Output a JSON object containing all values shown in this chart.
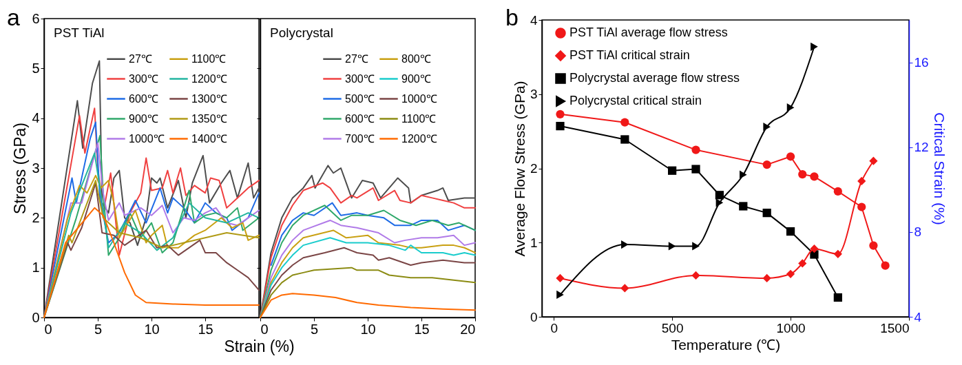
{
  "chart_data": [
    {
      "type": "line",
      "title": "PST TiAl",
      "xlabel": "Strain (%)",
      "ylabel": "Stress (GPa)",
      "annotations": [
        "a"
      ],
      "xlim": [
        0,
        20
      ],
      "xticks": [
        0,
        5,
        10,
        15
      ],
      "ylim": [
        0,
        6
      ],
      "yticks": [
        0,
        1,
        2,
        3,
        4,
        5,
        6
      ],
      "legend": "top right",
      "series": [
        {
          "name": "27℃",
          "color": "#4d4d4d",
          "x": [
            0,
            3.1,
            3.6,
            4.5,
            5.15,
            5.4,
            6,
            6.5,
            7,
            7.5,
            8,
            8.7,
            9.5,
            10,
            10.5,
            10.8,
            11.5,
            12.5,
            13.2,
            13.8,
            14.8,
            15.4,
            16.5,
            17.3,
            18,
            19,
            19.5,
            20
          ],
          "values": [
            0,
            4.35,
            3.4,
            4.7,
            5.15,
            2.3,
            2.1,
            2.8,
            2.95,
            2.0,
            1.9,
            1.45,
            2.0,
            2.8,
            2.7,
            2.8,
            2.2,
            2.75,
            2.0,
            2.7,
            3.25,
            2.3,
            2.7,
            2.95,
            2.4,
            3.1,
            2.4,
            2.6
          ]
        },
        {
          "name": "300℃",
          "color": "#f04040",
          "x": [
            0,
            3.3,
            3.8,
            4.7,
            5,
            5.5,
            6.2,
            7,
            8,
            9,
            9.5,
            10,
            11,
            11.5,
            12,
            12.7,
            13.2,
            14,
            15,
            15.5,
            16.3,
            17,
            18,
            19,
            20
          ],
          "values": [
            0,
            4.05,
            3.3,
            4.2,
            3.0,
            2.1,
            2.9,
            1.25,
            2.1,
            2.5,
            3.2,
            2.55,
            2.6,
            2.95,
            2.5,
            3.0,
            2.45,
            2.65,
            2.5,
            2.8,
            2.75,
            2.2,
            2.4,
            2.6,
            2.75
          ]
        },
        {
          "name": "600℃",
          "color": "#1e6be6",
          "x": [
            0,
            2.6,
            3,
            4.3,
            4.8,
            5.2,
            6,
            7,
            8.5,
            9.5,
            10.8,
            11.5,
            12,
            13,
            14,
            15,
            16,
            17,
            17.5,
            19,
            20
          ],
          "values": [
            0,
            2.8,
            2.3,
            3.6,
            3.92,
            2.4,
            1.5,
            1.7,
            2.35,
            1.9,
            2.6,
            2.1,
            2.4,
            2.2,
            1.9,
            2.3,
            2.1,
            2.0,
            1.75,
            2.0,
            2.5
          ]
        },
        {
          "name": "900℃",
          "color": "#2fa86a",
          "x": [
            0,
            3,
            5.2,
            5.5,
            6,
            7,
            8,
            9,
            10,
            11,
            12,
            13,
            13.5,
            14,
            15,
            16,
            17,
            18,
            18.5,
            20
          ],
          "values": [
            0,
            2.0,
            3.65,
            2.5,
            1.25,
            1.6,
            2.1,
            1.6,
            1.9,
            1.3,
            1.5,
            2.2,
            2.55,
            1.9,
            2.05,
            2.1,
            2.0,
            2.2,
            1.75,
            2.0
          ]
        },
        {
          "name": "1000℃",
          "color": "#b07ae8",
          "x": [
            0,
            2.5,
            3.5,
            5,
            5.5,
            6,
            7,
            7.5,
            9,
            10,
            11,
            12,
            13,
            14,
            15,
            16,
            17,
            18,
            19,
            20
          ],
          "values": [
            0,
            2.3,
            2.3,
            3.5,
            2.5,
            1.95,
            2.3,
            2.05,
            2.2,
            2.05,
            2.25,
            1.7,
            2.0,
            1.95,
            2.1,
            2.2,
            1.9,
            1.85,
            2.0,
            2.15
          ]
        },
        {
          "name": "1100℃",
          "color": "#c9a012",
          "x": [
            0,
            2.2,
            3.3,
            4,
            4.8,
            5.3,
            6,
            6.5,
            7,
            8.5,
            9.5,
            10,
            11,
            11.5,
            12.5,
            14,
            15,
            16.5,
            17.5,
            18.5,
            19,
            20
          ],
          "values": [
            0,
            2.0,
            2.65,
            2.5,
            2.85,
            2.6,
            2.75,
            2.3,
            1.6,
            2.15,
            1.5,
            1.65,
            1.85,
            1.4,
            1.4,
            1.65,
            1.75,
            2.0,
            1.8,
            1.9,
            1.55,
            1.65
          ]
        },
        {
          "name": "1200℃",
          "color": "#22b5a0",
          "x": [
            0,
            2.5,
            4.7,
            5.2,
            6,
            7.5,
            9,
            10.5,
            12,
            13.5,
            15,
            17,
            19,
            20
          ],
          "values": [
            0,
            2.1,
            3.3,
            2.6,
            1.4,
            1.9,
            1.7,
            1.35,
            1.6,
            2.3,
            2.0,
            1.9,
            2.1,
            2.0
          ]
        },
        {
          "name": "1300℃",
          "color": "#7a4545",
          "x": [
            0,
            2.2,
            2.5,
            3.5,
            4.8,
            5.4,
            6.5,
            7.5,
            9.5,
            10.5,
            11.5,
            12.5,
            14.5,
            15,
            16,
            17,
            18,
            19,
            20
          ],
          "values": [
            0,
            1.5,
            1.35,
            1.8,
            2.7,
            1.7,
            1.65,
            1.45,
            1.75,
            1.4,
            1.45,
            1.25,
            1.55,
            1.3,
            1.3,
            1.1,
            0.95,
            0.8,
            0.55
          ]
        },
        {
          "name": "1350℃",
          "color": "#b09a15",
          "x": [
            0,
            2.3,
            2.6,
            4.8,
            5.5,
            7,
            9,
            11,
            13,
            15,
            17,
            20
          ],
          "values": [
            0,
            1.65,
            1.5,
            2.75,
            2.0,
            1.7,
            1.6,
            1.4,
            1.5,
            1.6,
            1.7,
            1.6
          ]
        },
        {
          "name": "1400℃",
          "color": "#ff6a00",
          "x": [
            0,
            2,
            4.7,
            5.5,
            6.5,
            7.5,
            8.5,
            9.5,
            12,
            15,
            20
          ],
          "values": [
            0,
            1.5,
            2.2,
            2.05,
            1.5,
            0.9,
            0.45,
            0.3,
            0.27,
            0.25,
            0.25
          ]
        }
      ]
    },
    {
      "type": "line",
      "title": "Polycrystal",
      "xlim": [
        0,
        20
      ],
      "xticks": [
        0,
        5,
        10,
        15,
        20
      ],
      "ylim": [
        0,
        6
      ],
      "yticks": [
        0,
        1,
        2,
        3,
        4,
        5,
        6
      ],
      "tick_labels": "x",
      "legend": "top right",
      "series": [
        {
          "name": "27℃",
          "color": "#4d4d4d",
          "x": [
            0,
            1,
            2,
            3,
            4,
            4.8,
            5.1,
            6.3,
            6.8,
            7.5,
            8,
            8.5,
            9.5,
            10.5,
            11.2,
            12.8,
            13.8,
            14,
            15,
            16.5,
            17,
            17.5,
            19,
            20
          ],
          "values": [
            0,
            1.3,
            2.0,
            2.4,
            2.6,
            2.85,
            2.6,
            3.05,
            2.9,
            3.0,
            2.7,
            2.4,
            2.75,
            2.7,
            2.4,
            2.8,
            2.6,
            2.3,
            2.45,
            2.55,
            2.6,
            2.35,
            2.4,
            2.4
          ]
        },
        {
          "name": "300℃",
          "color": "#f04040",
          "x": [
            0,
            1,
            2,
            3,
            4,
            5.8,
            6.5,
            7.5,
            8.5,
            9,
            10.5,
            11,
            12.5,
            13,
            14,
            15,
            16,
            17,
            18,
            19,
            20
          ],
          "values": [
            0,
            1.2,
            1.85,
            2.25,
            2.55,
            2.7,
            2.6,
            2.3,
            2.45,
            2.4,
            2.6,
            2.35,
            2.55,
            2.35,
            2.3,
            2.45,
            2.4,
            2.35,
            2.3,
            2.2,
            2.2
          ]
        },
        {
          "name": "500℃",
          "color": "#1e6be6",
          "x": [
            1,
            2,
            3,
            4,
            5,
            6.7,
            7.5,
            9,
            10,
            11.5,
            12.5,
            14,
            15,
            16.5,
            17.5,
            19,
            20
          ],
          "values": [
            1.05,
            1.65,
            1.95,
            2.1,
            2.05,
            2.3,
            2.05,
            2.1,
            2.05,
            2.0,
            1.85,
            1.85,
            1.95,
            1.95,
            1.75,
            1.85,
            1.75
          ]
        },
        {
          "name": "600℃",
          "color": "#2fa86a",
          "x": [
            0,
            1,
            2,
            3,
            4,
            6,
            7.5,
            8.5,
            10,
            11.5,
            13,
            14.5,
            16,
            17.5,
            18.5,
            20
          ],
          "values": [
            0,
            0.95,
            1.5,
            1.85,
            2.05,
            2.25,
            1.95,
            2.05,
            2.05,
            2.15,
            1.95,
            1.85,
            1.95,
            1.85,
            1.9,
            1.75
          ]
        },
        {
          "name": "700℃",
          "color": "#b07ae8",
          "x": [
            0,
            1,
            2,
            3,
            4,
            6.5,
            7.5,
            9,
            11,
            12.5,
            13.5,
            15,
            16.5,
            18,
            19,
            20
          ],
          "values": [
            0,
            0.8,
            1.25,
            1.55,
            1.75,
            1.95,
            1.85,
            1.8,
            1.7,
            1.5,
            1.55,
            1.6,
            1.6,
            1.65,
            1.45,
            1.5
          ]
        },
        {
          "name": "800℃",
          "color": "#c9a012",
          "x": [
            0,
            1,
            2,
            3,
            4,
            6.8,
            8,
            10,
            11,
            13,
            14,
            15,
            17,
            18,
            19,
            20
          ],
          "values": [
            0,
            0.7,
            1.1,
            1.4,
            1.6,
            1.75,
            1.6,
            1.65,
            1.5,
            1.45,
            1.4,
            1.4,
            1.45,
            1.45,
            1.4,
            1.3
          ]
        },
        {
          "name": "900℃",
          "color": "#19cccc",
          "x": [
            0,
            1,
            2,
            3,
            4,
            6.5,
            8,
            10,
            12,
            13.5,
            14,
            15,
            17,
            18,
            19,
            20
          ],
          "values": [
            0,
            0.65,
            1.0,
            1.25,
            1.45,
            1.6,
            1.5,
            1.5,
            1.45,
            1.35,
            1.45,
            1.3,
            1.3,
            1.25,
            1.3,
            1.25
          ]
        },
        {
          "name": "1000℃",
          "color": "#7a4545",
          "x": [
            0,
            1,
            2,
            3,
            4,
            6,
            7.8,
            9,
            10.5,
            11,
            12,
            14,
            15,
            17,
            19,
            20
          ],
          "values": [
            0,
            0.55,
            0.85,
            1.05,
            1.2,
            1.3,
            1.4,
            1.3,
            1.25,
            1.15,
            1.2,
            1.05,
            1.1,
            1.15,
            1.1,
            1.1
          ]
        },
        {
          "name": "1100℃",
          "color": "#8b8b12",
          "x": [
            0,
            1,
            2,
            3,
            4,
            5,
            8.5,
            9,
            11,
            12,
            14,
            16,
            18,
            20
          ],
          "values": [
            0,
            0.45,
            0.7,
            0.85,
            0.9,
            0.95,
            1.0,
            0.95,
            0.95,
            0.85,
            0.8,
            0.8,
            0.75,
            0.7
          ]
        },
        {
          "name": "1200℃",
          "color": "#ff6a00",
          "x": [
            0,
            1,
            2,
            3,
            5,
            7,
            9,
            11,
            14,
            17,
            20
          ],
          "values": [
            0,
            0.35,
            0.45,
            0.48,
            0.45,
            0.4,
            0.3,
            0.25,
            0.2,
            0.17,
            0.15
          ]
        }
      ]
    },
    {
      "type": "line",
      "xlabel": "Temperature (℃)",
      "ylabel": "Average Flow Stress (GPa)",
      "y2label": "Critical Strain (%)",
      "annotations": [
        "b"
      ],
      "xlim": [
        -50,
        1500
      ],
      "xticks": [
        0,
        500,
        1000,
        1500
      ],
      "ylim": [
        0,
        4
      ],
      "yticks": [
        0,
        1,
        2,
        3,
        4
      ],
      "y2lim": [
        4,
        18
      ],
      "y2ticks": [
        4,
        8,
        12,
        16
      ],
      "legend": "top left",
      "series": [
        {
          "name": "PST TiAl average flow stress",
          "color": "#f01818",
          "marker": "circle",
          "x": [
            27,
            300,
            600,
            900,
            1000,
            1050,
            1100,
            1200,
            1300,
            1350,
            1400
          ],
          "values": [
            2.73,
            2.62,
            2.25,
            2.05,
            2.16,
            1.92,
            1.89,
            1.69,
            1.48,
            0.96,
            0.69
          ]
        },
        {
          "name": "PST TiAl critical strain",
          "color": "#f01818",
          "marker": "diamond",
          "axis": "y2",
          "x": [
            27,
            300,
            600,
            900,
            1000,
            1050,
            1100,
            1200,
            1300,
            1350
          ],
          "values": [
            5.82,
            5.35,
            5.95,
            5.82,
            6.02,
            6.52,
            7.21,
            6.96,
            10.4,
            11.35
          ]
        },
        {
          "name": "Polycrystal average flow stress",
          "color": "#000000",
          "marker": "square",
          "x": [
            27,
            300,
            500,
            600,
            700,
            800,
            900,
            1000,
            1100,
            1200
          ],
          "values": [
            2.57,
            2.39,
            1.97,
            1.99,
            1.64,
            1.49,
            1.4,
            1.15,
            0.84,
            0.26
          ]
        },
        {
          "name": "Polycrystal critical strain",
          "color": "#000000",
          "marker": "triangle",
          "axis": "y2",
          "x": [
            27,
            300,
            500,
            600,
            700,
            800,
            900,
            1000,
            1100
          ],
          "values": [
            5.04,
            7.41,
            7.33,
            7.33,
            9.38,
            10.7,
            12.96,
            13.87,
            16.74
          ]
        }
      ]
    }
  ]
}
